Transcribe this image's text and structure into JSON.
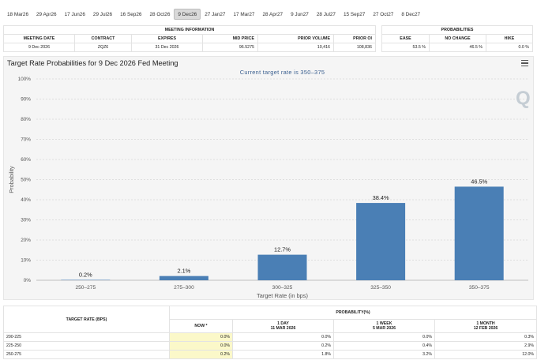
{
  "tabs": [
    "18 Mar26",
    "29 Apr26",
    "17 Jun26",
    "29 Jul26",
    "16 Sep26",
    "28 Oct26",
    "9 Dec26",
    "27 Jan27",
    "17 Mar27",
    "28 Apr27",
    "9 Jun27",
    "28 Jul27",
    "15 Sep27",
    "27 Oct27",
    "8 Dec27"
  ],
  "active_tab": "9 Dec26",
  "meeting_info": {
    "title": "MEETING INFORMATION",
    "headers": [
      "MEETING DATE",
      "CONTRACT",
      "EXPIRES",
      "MID PRICE",
      "PRIOR VOLUME",
      "PRIOR OI"
    ],
    "row": [
      "9 Dec 2026",
      "ZQZ6",
      "31 Dec 2026",
      "96.5275",
      "10,416",
      "108,836"
    ]
  },
  "probabilities": {
    "title": "PROBABILITIES",
    "headers": [
      "EASE",
      "NO CHANGE",
      "HIKE"
    ],
    "row": [
      "53.5 %",
      "46.5 %",
      "0.0 %"
    ]
  },
  "chart_data": {
    "type": "bar",
    "title": "Target Rate Probabilities for 9 Dec 2026 Fed Meeting",
    "subtitle": "Current target rate is 350–375",
    "xlabel": "Target Rate (in bps)",
    "ylabel": "Probability",
    "categories": [
      "250–275",
      "275–300",
      "300–325",
      "325–350",
      "350–375"
    ],
    "values": [
      0.2,
      2.1,
      12.7,
      38.4,
      46.5
    ],
    "value_labels": [
      "0.2%",
      "2.1%",
      "12.7%",
      "38.4%",
      "46.5%"
    ],
    "ylim": [
      0,
      100
    ],
    "yticks": [
      0,
      10,
      20,
      30,
      40,
      50,
      60,
      70,
      80,
      90,
      100
    ],
    "ytick_labels": [
      "0%",
      "10%",
      "20%",
      "30%",
      "40%",
      "50%",
      "60%",
      "70%",
      "80%",
      "90%",
      "100%"
    ],
    "bar_color": "#4a7fb5",
    "grid": true
  },
  "prob_table": {
    "group_header": "PROBABILITY(%)",
    "rate_header": "TARGET RATE (BPS)",
    "now_header": "NOW *",
    "columns": [
      {
        "label": "1 DAY",
        "date": "11 MAR 2026"
      },
      {
        "label": "1 WEEK",
        "date": "5 MAR 2026"
      },
      {
        "label": "1 MONTH",
        "date": "12 FEB 2026"
      }
    ],
    "rows": [
      {
        "rate": "200-225",
        "now": "0.0%",
        "day": "0.0%",
        "week": "0.0%",
        "month": "0.3%"
      },
      {
        "rate": "225-250",
        "now": "0.0%",
        "day": "0.2%",
        "week": "0.4%",
        "month": "2.9%"
      },
      {
        "rate": "250-275",
        "now": "0.2%",
        "day": "1.8%",
        "week": "3.2%",
        "month": "12.0%"
      }
    ]
  }
}
